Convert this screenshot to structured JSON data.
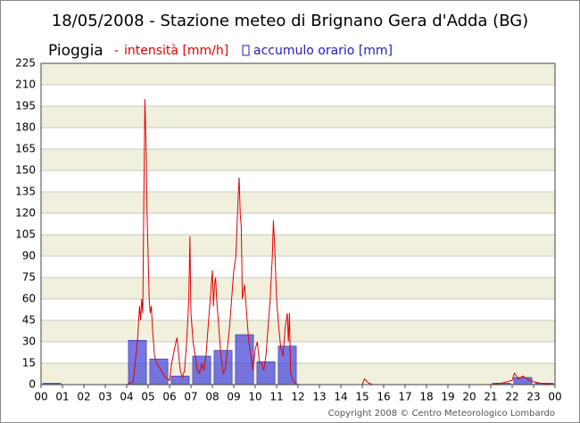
{
  "chart_data": {
    "type": "combo",
    "title": "18/05/2008 - Stazione meteo di Brignano Gera d'Adda (BG)",
    "subtitle": "Pioggia",
    "copyright": "Copyright 2008 © Centro Meteorologico Lombardo",
    "xlim": [
      0,
      24
    ],
    "xticks": [
      {
        "value": 0,
        "label": "00"
      },
      {
        "value": 1,
        "label": "01"
      },
      {
        "value": 2,
        "label": "02"
      },
      {
        "value": 3,
        "label": "03"
      },
      {
        "value": 4,
        "label": "04"
      },
      {
        "value": 5,
        "label": "05"
      },
      {
        "value": 6,
        "label": "06"
      },
      {
        "value": 7,
        "label": "07"
      },
      {
        "value": 8,
        "label": "08"
      },
      {
        "value": 9,
        "label": "09"
      },
      10,
      11,
      12,
      13,
      14,
      15,
      16,
      17,
      18,
      19,
      20,
      21,
      22,
      23,
      {
        "value": 24,
        "label": "00"
      }
    ],
    "ylim": [
      0,
      225
    ],
    "yticks": [
      0,
      15,
      30,
      45,
      60,
      75,
      90,
      105,
      120,
      135,
      150,
      165,
      180,
      195,
      210,
      225
    ],
    "grid": true,
    "series": [
      {
        "name": "accumulo orario [mm]",
        "type": "bar",
        "color": "#4b4bdc",
        "x": [
          0,
          4,
          5,
          6,
          7,
          8,
          9,
          10,
          11,
          21,
          22,
          23
        ],
        "values": [
          1,
          31,
          18,
          6,
          20,
          24,
          35,
          16,
          27,
          1,
          5,
          1
        ]
      },
      {
        "name": "intensità [mm/h]",
        "type": "line",
        "color": "#e00000",
        "x": [
          0,
          4.0,
          4.3,
          4.5,
          4.6,
          4.65,
          4.7,
          4.75,
          4.8,
          4.85,
          4.9,
          4.95,
          5.0,
          5.05,
          5.1,
          5.15,
          5.2,
          5.3,
          5.4,
          5.6,
          5.8,
          6.0,
          6.1,
          6.3,
          6.35,
          6.4,
          6.5,
          6.6,
          6.7,
          6.8,
          6.9,
          6.95,
          7.0,
          7.1,
          7.2,
          7.3,
          7.4,
          7.5,
          7.6,
          7.7,
          7.8,
          7.9,
          8.0,
          8.05,
          8.1,
          8.15,
          8.2,
          8.3,
          8.4,
          8.5,
          8.6,
          8.7,
          8.8,
          8.9,
          9.0,
          9.1,
          9.2,
          9.25,
          9.3,
          9.35,
          9.4,
          9.5,
          9.6,
          9.7,
          9.8,
          9.9,
          10.0,
          10.1,
          10.2,
          10.3,
          10.4,
          10.5,
          10.6,
          10.7,
          10.8,
          10.85,
          10.9,
          11.0,
          11.1,
          11.2,
          11.3,
          11.4,
          11.5,
          11.55,
          11.6,
          11.65,
          11.7,
          11.8,
          12.0,
          15.0,
          15.1,
          15.3,
          15.5,
          21.0,
          21.5,
          22.0,
          22.1,
          22.3,
          22.5,
          22.8,
          23.0,
          23.3,
          24
        ],
        "values": [
          0,
          0,
          2,
          30,
          55,
          45,
          60,
          50,
          130,
          200,
          170,
          120,
          90,
          60,
          50,
          55,
          40,
          20,
          15,
          10,
          5,
          3,
          15,
          30,
          33,
          25,
          10,
          5,
          10,
          30,
          60,
          104,
          50,
          30,
          20,
          10,
          8,
          15,
          10,
          20,
          40,
          60,
          80,
          55,
          70,
          75,
          60,
          40,
          20,
          8,
          10,
          25,
          40,
          60,
          80,
          90,
          130,
          145,
          120,
          110,
          60,
          70,
          50,
          30,
          20,
          10,
          25,
          30,
          15,
          15,
          10,
          20,
          40,
          60,
          90,
          115,
          100,
          60,
          40,
          25,
          20,
          40,
          50,
          30,
          50,
          10,
          5,
          2,
          0,
          0,
          4,
          1,
          0,
          0,
          1,
          3,
          8,
          4,
          6,
          3,
          2,
          1,
          0
        ]
      }
    ]
  }
}
